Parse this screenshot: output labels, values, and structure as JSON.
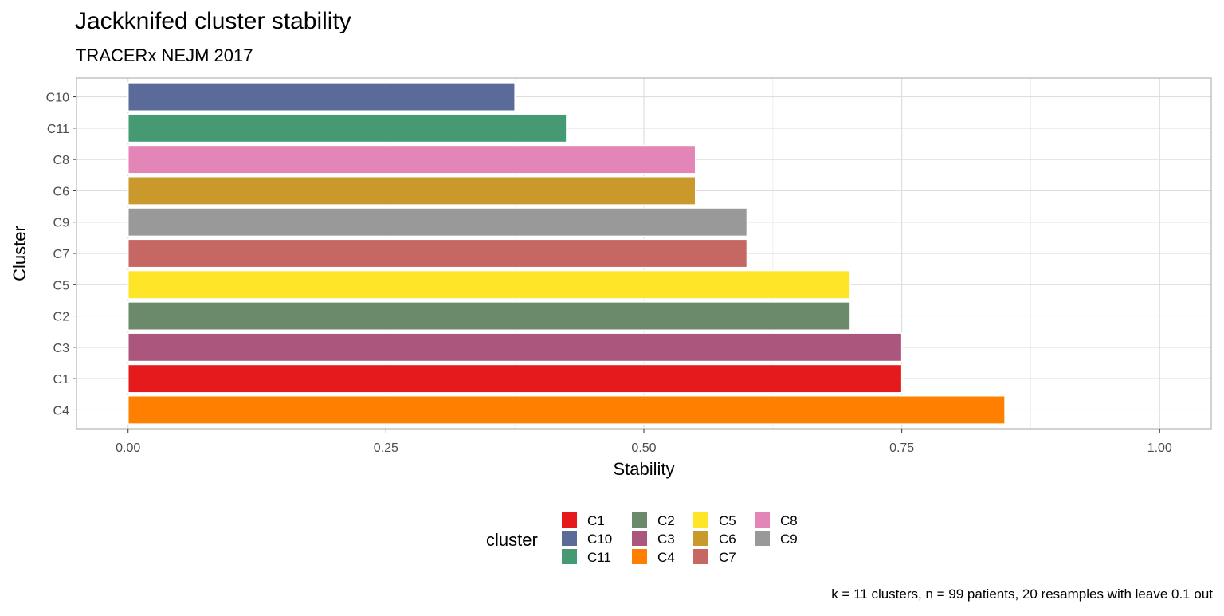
{
  "chart_data": {
    "type": "bar",
    "orientation": "horizontal",
    "title": "Jackknifed cluster stability",
    "subtitle": "TRACERx NEJM 2017",
    "xlabel": "Stability",
    "ylabel": "Cluster",
    "xlim": [
      -0.05,
      1.05
    ],
    "x_ticks": [
      "0.00",
      "0.25",
      "0.50",
      "0.75",
      "1.00"
    ],
    "x_tick_values": [
      0,
      0.25,
      0.5,
      0.75,
      1.0
    ],
    "categories": [
      "C10",
      "C11",
      "C8",
      "C6",
      "C9",
      "C7",
      "C5",
      "C2",
      "C3",
      "C1",
      "C4"
    ],
    "values": [
      0.375,
      0.425,
      0.55,
      0.55,
      0.6,
      0.6,
      0.7,
      0.7,
      0.75,
      0.75,
      0.85
    ],
    "grid": true,
    "legend": {
      "title": "cluster",
      "placement": "bottom",
      "items": [
        {
          "label": "C1",
          "color": "#E41A1C"
        },
        {
          "label": "C10",
          "color": "#5A6B99"
        },
        {
          "label": "C11",
          "color": "#459A74"
        },
        {
          "label": "C2",
          "color": "#6B8A6C"
        },
        {
          "label": "C3",
          "color": "#AB577D"
        },
        {
          "label": "C4",
          "color": "#FF7F00"
        },
        {
          "label": "C5",
          "color": "#FFE528"
        },
        {
          "label": "C6",
          "color": "#C9992C"
        },
        {
          "label": "C7",
          "color": "#C66764"
        },
        {
          "label": "C8",
          "color": "#E386B7"
        },
        {
          "label": "C9",
          "color": "#999999"
        }
      ]
    },
    "caption": "k = 11 clusters, n = 99 patients, 20 resamples with leave 0.1 out"
  }
}
